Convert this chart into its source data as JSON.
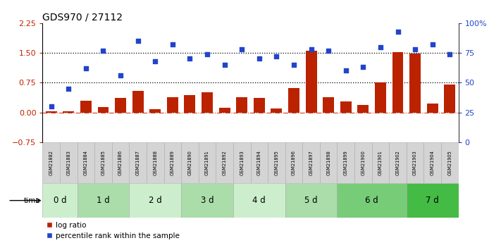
{
  "title": "GDS970 / 27112",
  "samples": [
    "GSM21882",
    "GSM21883",
    "GSM21884",
    "GSM21885",
    "GSM21886",
    "GSM21887",
    "GSM21888",
    "GSM21889",
    "GSM21890",
    "GSM21891",
    "GSM21892",
    "GSM21893",
    "GSM21894",
    "GSM21895",
    "GSM21896",
    "GSM21897",
    "GSM21898",
    "GSM21899",
    "GSM21900",
    "GSM21901",
    "GSM21902",
    "GSM21903",
    "GSM21904",
    "GSM21905"
  ],
  "log_ratio": [
    0.02,
    0.02,
    0.3,
    0.14,
    0.36,
    0.55,
    0.08,
    0.38,
    0.44,
    0.5,
    0.12,
    0.38,
    0.36,
    0.09,
    0.62,
    1.56,
    0.38,
    0.28,
    0.19,
    0.75,
    1.52,
    1.48,
    0.22,
    0.7
  ],
  "percentile_rank": [
    30,
    45,
    62,
    77,
    56,
    85,
    68,
    82,
    70,
    74,
    65,
    78,
    70,
    72,
    65,
    78,
    77,
    60,
    63,
    80,
    93,
    78,
    82,
    74
  ],
  "groups": [
    {
      "label": "0 d",
      "start": 0,
      "end": 2,
      "color": "#cceecc"
    },
    {
      "label": "1 d",
      "start": 2,
      "end": 5,
      "color": "#aaddaa"
    },
    {
      "label": "2 d",
      "start": 5,
      "end": 8,
      "color": "#cceecc"
    },
    {
      "label": "3 d",
      "start": 8,
      "end": 11,
      "color": "#aaddaa"
    },
    {
      "label": "4 d",
      "start": 11,
      "end": 14,
      "color": "#cceecc"
    },
    {
      "label": "5 d",
      "start": 14,
      "end": 17,
      "color": "#aaddaa"
    },
    {
      "label": "6 d",
      "start": 17,
      "end": 21,
      "color": "#77cc77"
    },
    {
      "label": "7 d",
      "start": 21,
      "end": 24,
      "color": "#44bb44"
    }
  ],
  "bar_color": "#bb2200",
  "dot_color": "#2244cc",
  "left_ylim": [
    -0.75,
    2.25
  ],
  "right_ylim": [
    0,
    100
  ],
  "left_yticks": [
    -0.75,
    0,
    0.75,
    1.5,
    2.25
  ],
  "right_yticks": [
    0,
    25,
    50,
    75,
    100
  ],
  "right_yticklabels": [
    "0",
    "25",
    "50",
    "75",
    "100%"
  ],
  "hline1": 1.5,
  "hline2": 0.75,
  "hline0": 0.0,
  "sample_box_color": "#d4d4d4",
  "tick_fontsize": 8,
  "label_fontsize": 4.8,
  "group_fontsize": 8.5
}
